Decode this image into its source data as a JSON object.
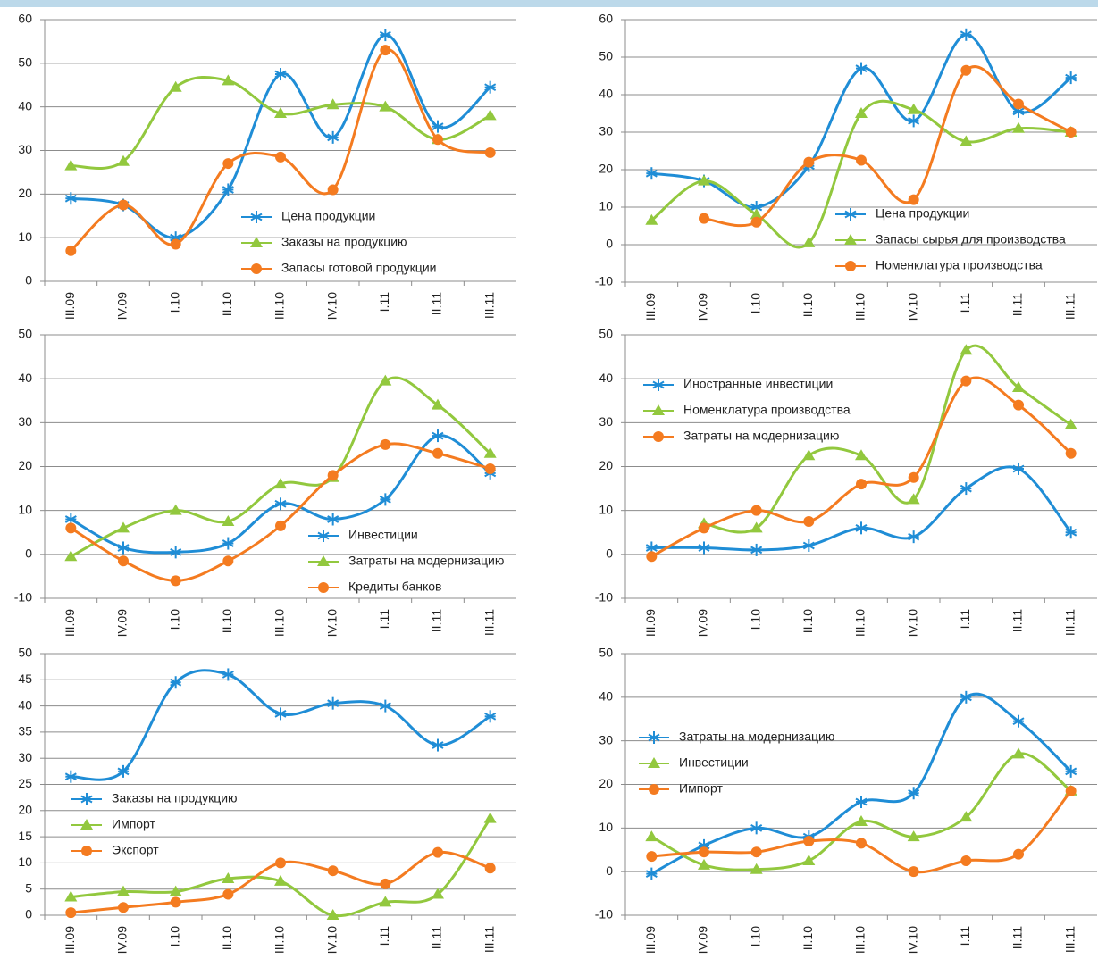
{
  "chart_data": [
    {
      "type": "line",
      "categories": [
        "III.09",
        "IV.09",
        "I.10",
        "II.10",
        "III.10",
        "IV.10",
        "I.11",
        "II.11",
        "III.11"
      ],
      "ylim": [
        0,
        60
      ],
      "yticks": [
        0,
        10,
        20,
        30,
        40,
        50,
        60
      ],
      "grid": true,
      "series": [
        {
          "name": "Цена продукции",
          "color": "#1f8dd6",
          "marker": "asterisk",
          "values": [
            19,
            17.5,
            10,
            21,
            47.5,
            33,
            56.5,
            35.5,
            44.5
          ]
        },
        {
          "name": "Заказы на продукцию",
          "color": "#92c83e",
          "marker": "triangle",
          "values": [
            26.5,
            27.5,
            44.5,
            46,
            38.5,
            40.5,
            40,
            32.5,
            38
          ]
        },
        {
          "name": "Запасы готовой продукции",
          "color": "#f47b20",
          "marker": "circle",
          "values": [
            7,
            17.5,
            8.5,
            27,
            28.5,
            21,
            53,
            32.5,
            29.5
          ]
        }
      ]
    },
    {
      "type": "line",
      "categories": [
        "III.09",
        "IV.09",
        "I.10",
        "II.10",
        "III.10",
        "IV.10",
        "I.11",
        "II.11",
        "III.11"
      ],
      "ylim": [
        -10,
        60
      ],
      "yticks": [
        -10,
        0,
        10,
        20,
        30,
        40,
        50,
        60
      ],
      "grid": true,
      "series": [
        {
          "name": "Цена продукции",
          "color": "#1f8dd6",
          "marker": "asterisk",
          "values": [
            19,
            17,
            10,
            21,
            47,
            33,
            56,
            35.5,
            44.5
          ]
        },
        {
          "name": "Запасы сырья для производства",
          "color": "#92c83e",
          "marker": "triangle",
          "values": [
            6.5,
            17,
            8,
            0.5,
            35,
            36,
            27.5,
            31,
            30
          ]
        },
        {
          "name": "Номенклатура производства",
          "color": "#f47b20",
          "marker": "circle",
          "values": [
            null,
            7,
            6,
            22,
            22.5,
            12,
            46.5,
            37.5,
            30
          ]
        }
      ]
    },
    {
      "type": "line",
      "categories": [
        "III.09",
        "IV.09",
        "I.10",
        "II.10",
        "III.10",
        "IV.10",
        "I.11",
        "II.11",
        "III.11"
      ],
      "ylim": [
        -10,
        50
      ],
      "yticks": [
        -10,
        0,
        10,
        20,
        30,
        40,
        50
      ],
      "grid": true,
      "series": [
        {
          "name": "Инвестиции",
          "color": "#1f8dd6",
          "marker": "asterisk",
          "values": [
            8,
            1.5,
            0.5,
            2.5,
            11.5,
            8,
            12.5,
            27,
            18.5
          ]
        },
        {
          "name": "Затраты на модернизацию",
          "color": "#92c83e",
          "marker": "triangle",
          "values": [
            -0.5,
            6,
            10,
            7.5,
            16,
            17.5,
            39.5,
            34,
            23
          ]
        },
        {
          "name": "Кредиты банков",
          "color": "#f47b20",
          "marker": "circle",
          "values": [
            6,
            -1.5,
            -6,
            -1.5,
            6.5,
            18,
            25,
            23,
            19.5
          ]
        }
      ]
    },
    {
      "type": "line",
      "categories": [
        "III.09",
        "IV.09",
        "I.10",
        "II.10",
        "III.10",
        "IV.10",
        "I.11",
        "II.11",
        "III.11"
      ],
      "ylim": [
        -10,
        50
      ],
      "yticks": [
        -10,
        0,
        10,
        20,
        30,
        40,
        50
      ],
      "grid": true,
      "series": [
        {
          "name": "Иностранные инвестиции",
          "color": "#1f8dd6",
          "marker": "asterisk",
          "values": [
            1.5,
            1.5,
            1,
            2,
            6,
            4,
            15,
            19.5,
            5
          ]
        },
        {
          "name": "Номенклатура производства",
          "color": "#92c83e",
          "marker": "triangle",
          "values": [
            null,
            7,
            6,
            22.5,
            22.5,
            12.5,
            46.5,
            38,
            29.5
          ]
        },
        {
          "name": "Затраты на модернизацию",
          "color": "#f47b20",
          "marker": "circle",
          "values": [
            -0.5,
            6,
            10,
            7.5,
            16,
            17.5,
            39.5,
            34,
            23
          ]
        }
      ]
    },
    {
      "type": "line",
      "categories": [
        "III.09",
        "IV.09",
        "I.10",
        "II.10",
        "III.10",
        "IV.10",
        "I.11",
        "II.11",
        "III.11"
      ],
      "ylim": [
        0,
        50
      ],
      "yticks": [
        0,
        5,
        10,
        15,
        20,
        25,
        30,
        35,
        40,
        45,
        50
      ],
      "grid": true,
      "series": [
        {
          "name": "Заказы на продукцию",
          "color": "#1f8dd6",
          "marker": "asterisk",
          "values": [
            26.5,
            27.5,
            44.5,
            46,
            38.5,
            40.5,
            40,
            32.5,
            38
          ]
        },
        {
          "name": "Импорт",
          "color": "#92c83e",
          "marker": "triangle",
          "values": [
            3.5,
            4.5,
            4.5,
            7,
            6.5,
            0,
            2.5,
            4,
            18.5
          ]
        },
        {
          "name": "Экспорт",
          "color": "#f47b20",
          "marker": "circle",
          "values": [
            0.5,
            1.5,
            2.5,
            4,
            10,
            8.5,
            6,
            12,
            9
          ]
        }
      ]
    },
    {
      "type": "line",
      "categories": [
        "III.09",
        "IV.09",
        "I.10",
        "II.10",
        "III.10",
        "IV.10",
        "I.11",
        "II.11",
        "III.11"
      ],
      "ylim": [
        -10,
        50
      ],
      "yticks": [
        -10,
        0,
        10,
        20,
        30,
        40,
        50
      ],
      "grid": true,
      "series": [
        {
          "name": "Затраты на модернизацию",
          "color": "#1f8dd6",
          "marker": "asterisk",
          "values": [
            -0.5,
            6,
            10,
            8,
            16,
            18,
            40,
            34.5,
            23
          ]
        },
        {
          "name": "Инвестиции",
          "color": "#92c83e",
          "marker": "triangle",
          "values": [
            8,
            1.5,
            0.5,
            2.5,
            11.5,
            8,
            12.5,
            27,
            18.5
          ]
        },
        {
          "name": "Импорт",
          "color": "#f47b20",
          "marker": "circle",
          "values": [
            3.5,
            4.5,
            4.5,
            7,
            6.5,
            0,
            2.5,
            4,
            18.5
          ]
        }
      ]
    }
  ]
}
